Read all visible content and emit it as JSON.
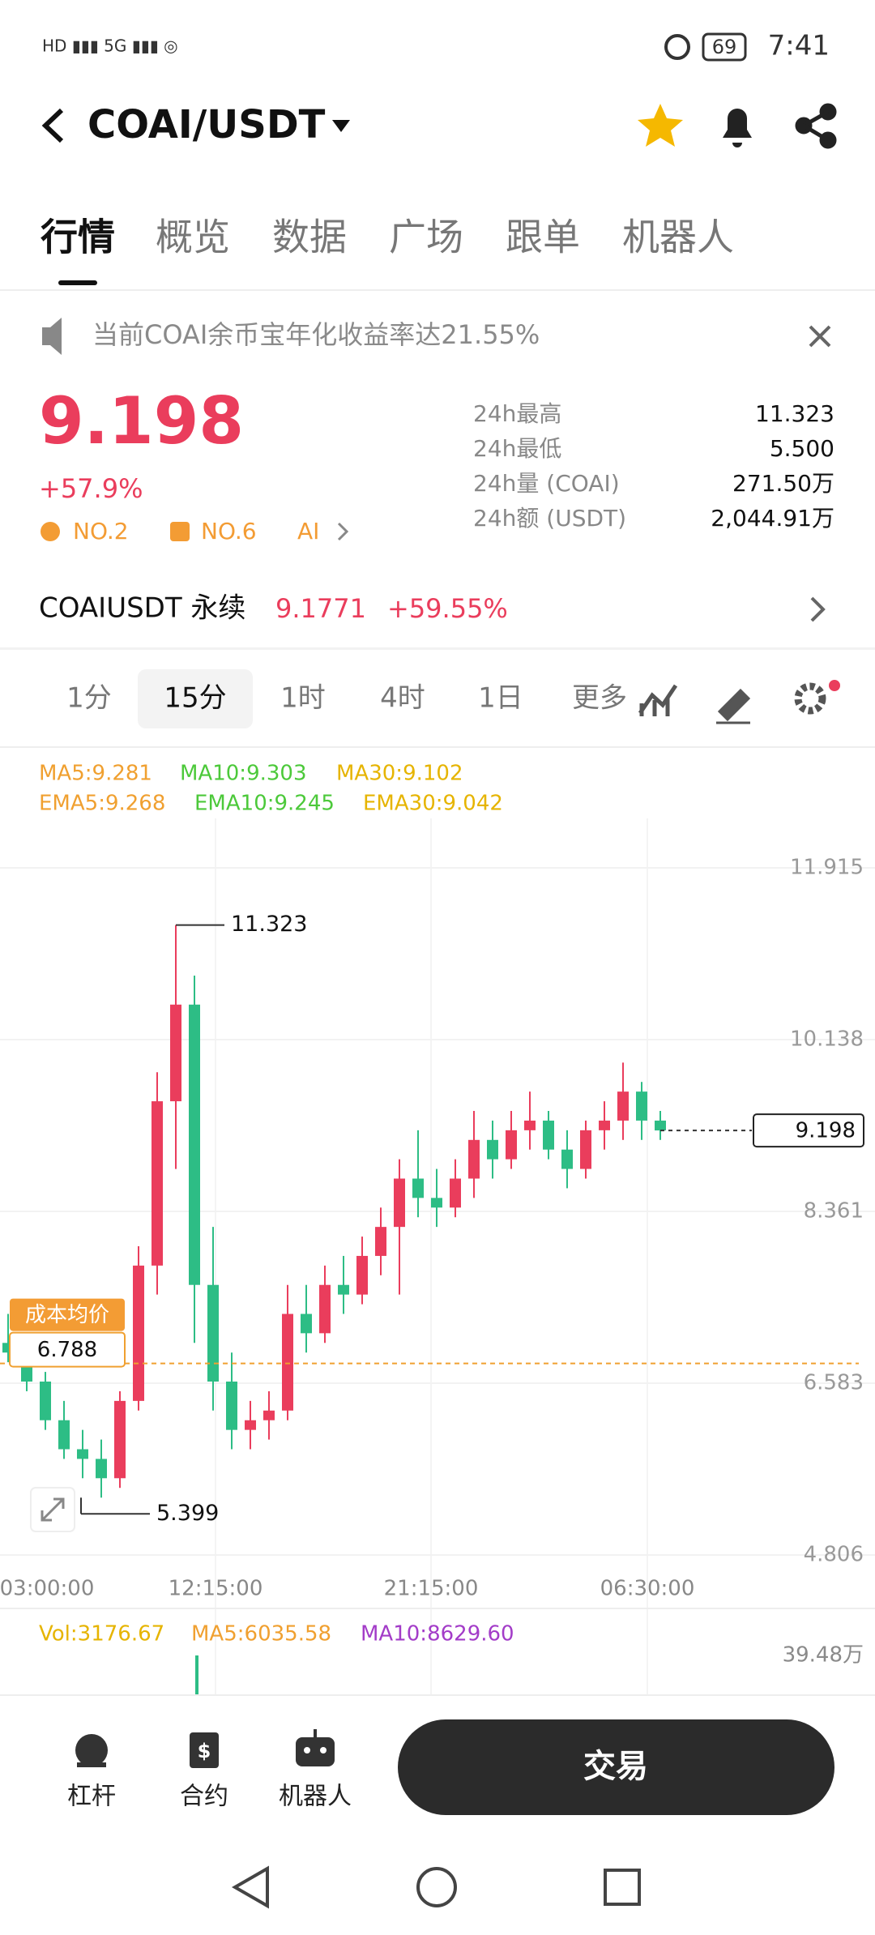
{
  "status": {
    "time": "7:41",
    "battery": "69"
  },
  "header": {
    "title": "COAI/USDT"
  },
  "tabs": [
    "行情",
    "概览",
    "数据",
    "广场",
    "跟单",
    "机器人"
  ],
  "notice": "当前COAI余币宝年化收益率达21.55%",
  "price": {
    "last": "9.198",
    "change": "+57.9%",
    "badges": [
      "NO.2",
      "NO.6",
      "AI"
    ]
  },
  "stats": [
    {
      "label": "24h最高",
      "value": "11.323"
    },
    {
      "label": "24h最低",
      "value": "5.500"
    },
    {
      "label": "24h量 (COAI)",
      "value": "271.50万"
    },
    {
      "label": "24h额 (USDT)",
      "value": "2,044.91万"
    }
  ],
  "perp": {
    "name": "COAIUSDT 永续",
    "price": "9.1771",
    "change": "+59.55%"
  },
  "intervals": [
    "1分",
    "15分",
    "1时",
    "4时",
    "1日",
    "更多"
  ],
  "indicators": [
    [
      "MA5:9.281",
      "MA10:9.303",
      "MA30:9.102"
    ],
    [
      "EMA5:9.268",
      "EMA10:9.245",
      "EMA30:9.042"
    ]
  ],
  "kline": {
    "type": "candlestick",
    "ylim": [
      4.806,
      11.915
    ],
    "yticks": [
      11.915,
      10.138,
      8.361,
      6.583,
      4.806
    ],
    "xticks": [
      "03:00:00",
      "12:15:00",
      "21:15:00",
      "06:30:00"
    ],
    "up_color": "#ea3d5c",
    "down_color": "#2dbd85",
    "candles": [
      [
        7.0,
        7.3,
        6.8,
        6.9
      ],
      [
        6.9,
        7.0,
        6.5,
        6.6
      ],
      [
        6.6,
        6.7,
        6.1,
        6.2
      ],
      [
        6.2,
        6.4,
        5.8,
        5.9
      ],
      [
        5.9,
        6.1,
        5.6,
        5.8
      ],
      [
        5.8,
        6.0,
        5.399,
        5.6
      ],
      [
        5.6,
        6.5,
        5.5,
        6.4
      ],
      [
        6.4,
        8.0,
        6.3,
        7.8
      ],
      [
        7.8,
        9.8,
        7.5,
        9.5
      ],
      [
        9.5,
        11.323,
        8.8,
        10.5
      ],
      [
        10.5,
        10.8,
        7.0,
        7.6
      ],
      [
        7.6,
        8.2,
        6.3,
        6.6
      ],
      [
        6.6,
        6.9,
        5.9,
        6.1
      ],
      [
        6.1,
        6.4,
        5.9,
        6.2
      ],
      [
        6.2,
        6.5,
        6.0,
        6.3
      ],
      [
        6.3,
        7.6,
        6.2,
        7.3
      ],
      [
        7.3,
        7.6,
        6.9,
        7.1
      ],
      [
        7.1,
        7.8,
        7.0,
        7.6
      ],
      [
        7.6,
        7.9,
        7.3,
        7.5
      ],
      [
        7.5,
        8.1,
        7.4,
        7.9
      ],
      [
        7.9,
        8.4,
        7.7,
        8.2
      ],
      [
        8.2,
        8.9,
        7.5,
        8.7
      ],
      [
        8.7,
        9.2,
        8.3,
        8.5
      ],
      [
        8.5,
        8.8,
        8.2,
        8.4
      ],
      [
        8.4,
        8.9,
        8.3,
        8.7
      ],
      [
        8.7,
        9.4,
        8.5,
        9.1
      ],
      [
        9.1,
        9.3,
        8.7,
        8.9
      ],
      [
        8.9,
        9.4,
        8.8,
        9.2
      ],
      [
        9.2,
        9.6,
        9.0,
        9.3
      ],
      [
        9.3,
        9.4,
        8.9,
        9.0
      ],
      [
        9.0,
        9.2,
        8.6,
        8.8
      ],
      [
        8.8,
        9.3,
        8.7,
        9.2
      ],
      [
        9.2,
        9.5,
        9.0,
        9.3
      ],
      [
        9.3,
        9.9,
        9.1,
        9.6
      ],
      [
        9.6,
        9.7,
        9.1,
        9.3
      ],
      [
        9.3,
        9.4,
        9.1,
        9.198
      ]
    ],
    "high": 11.323,
    "low": 5.399,
    "cost": {
      "label": "成本均价",
      "value": 6.788
    },
    "last": 9.198
  },
  "volume": {
    "legend": [
      "Vol:3176.67",
      "MA5:6035.58",
      "MA10:8629.60"
    ],
    "scale": "39.48万"
  },
  "bottom": {
    "nav": [
      "杠杆",
      "合约",
      "机器人"
    ],
    "trade": "交易"
  }
}
